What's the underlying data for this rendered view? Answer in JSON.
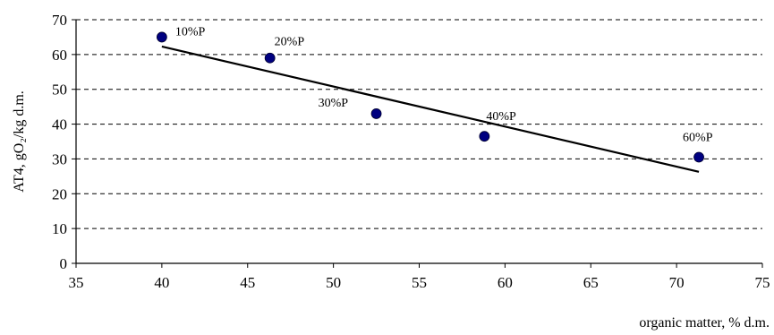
{
  "chart_data": {
    "type": "scatter",
    "title": "",
    "xlabel": "organic matter, % d.m.",
    "ylabel": "AT4, gO₂/kg d.m.",
    "xlim": [
      35,
      75
    ],
    "ylim": [
      0,
      70
    ],
    "x_ticks": [
      35,
      40,
      45,
      50,
      55,
      60,
      65,
      70,
      75
    ],
    "y_ticks": [
      0,
      10,
      20,
      30,
      40,
      50,
      60,
      70
    ],
    "grid": "horizontal dashed",
    "points": [
      {
        "x": 40.0,
        "y": 65.0,
        "label": "10%P"
      },
      {
        "x": 46.3,
        "y": 59.0,
        "label": "20%P"
      },
      {
        "x": 52.5,
        "y": 43.0,
        "label": "30%P"
      },
      {
        "x": 58.8,
        "y": 36.5,
        "label": "40%P"
      },
      {
        "x": 71.3,
        "y": 30.5,
        "label": "60%P"
      }
    ],
    "trendline": {
      "x": [
        40.0,
        71.3
      ],
      "y": [
        62.3,
        26.3
      ]
    },
    "colors": {
      "marker": "#000080",
      "trendline": "#000000",
      "grid": "#000000"
    }
  }
}
